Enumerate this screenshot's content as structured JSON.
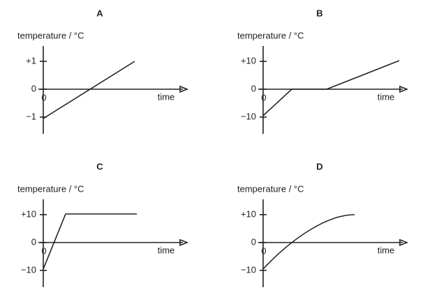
{
  "panels": [
    {
      "label": "A",
      "y_axis_label": "temperature / °C",
      "x_axis_label": "time",
      "origin_label": "0",
      "tick_labels": [
        "+1",
        "0",
        "−1"
      ]
    },
    {
      "label": "B",
      "y_axis_label": "temperature / °C",
      "x_axis_label": "time",
      "origin_label": "0",
      "tick_labels": [
        "+10",
        "0",
        "−10"
      ]
    },
    {
      "label": "C",
      "y_axis_label": "temperature / °C",
      "x_axis_label": "time",
      "origin_label": "0",
      "tick_labels": [
        "+10",
        "0",
        "−10"
      ]
    },
    {
      "label": "D",
      "y_axis_label": "temperature / °C",
      "x_axis_label": "time",
      "origin_label": "0",
      "tick_labels": [
        "+10",
        "0",
        "−10"
      ]
    }
  ]
}
